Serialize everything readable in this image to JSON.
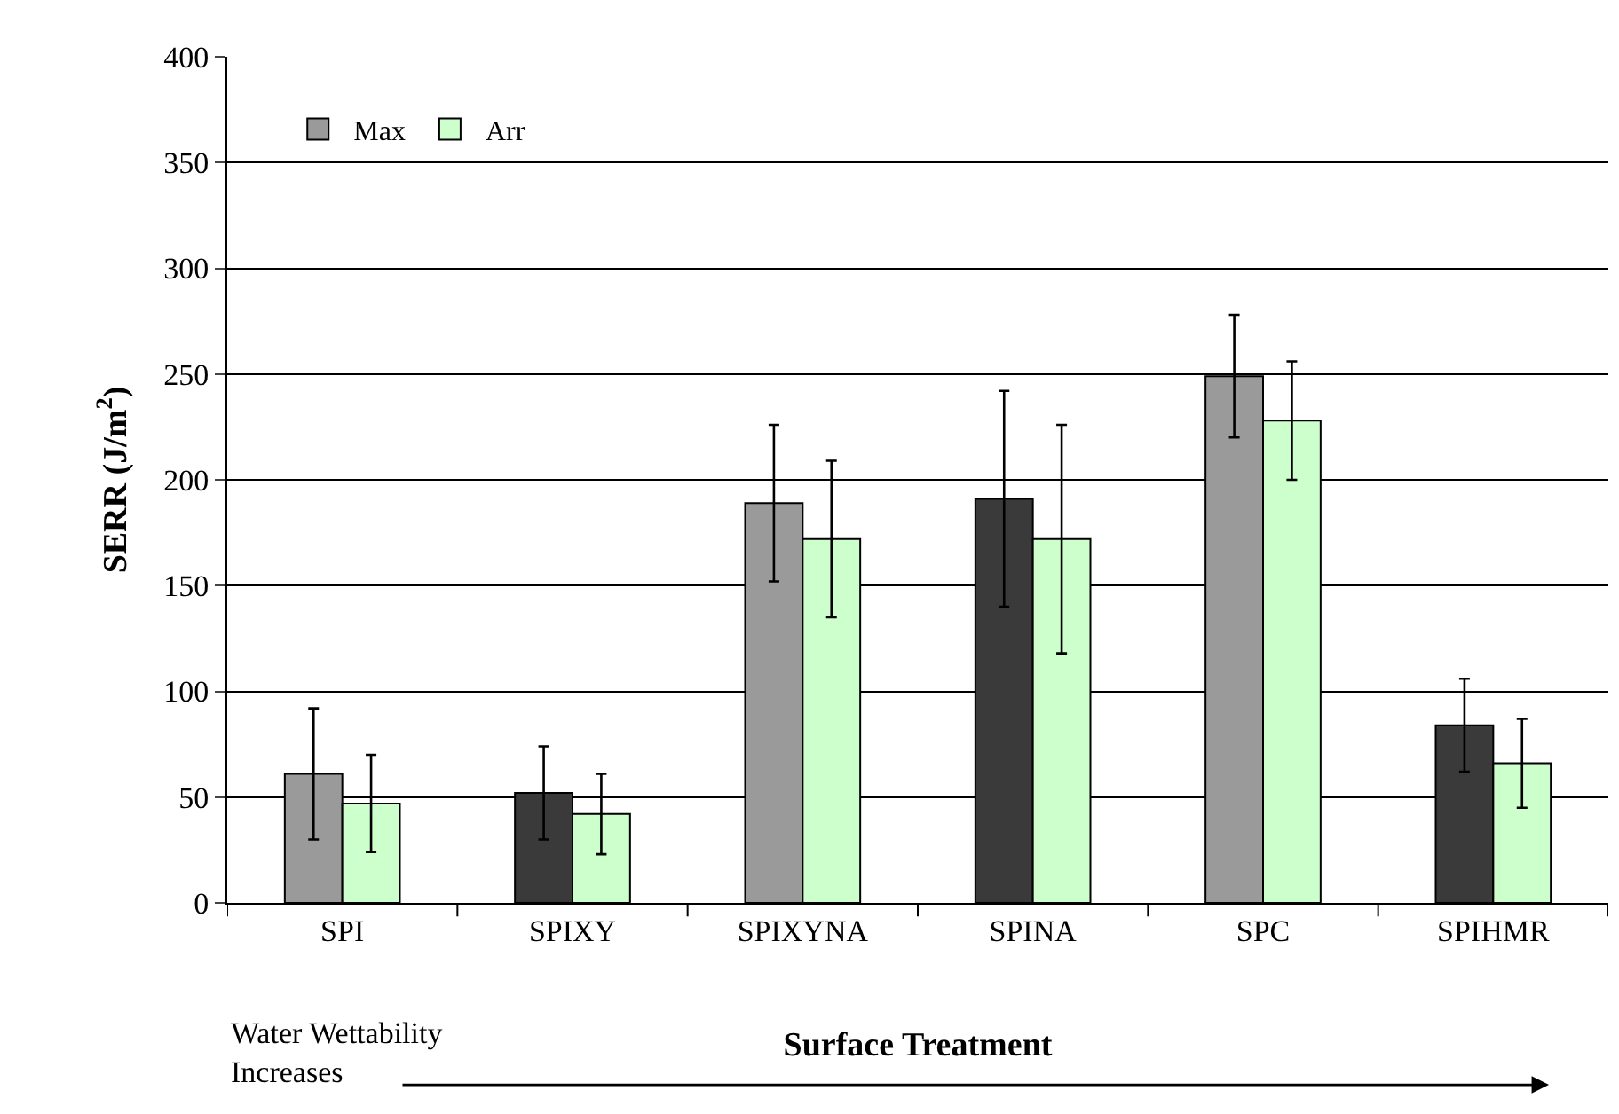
{
  "chart_data": {
    "type": "bar",
    "xlabel": "Surface Treatment",
    "ylabel": "SERR (J/m$^{2}$)",
    "categories": [
      "SPI",
      "SPIXY",
      "SPIXYNA",
      "SPINA",
      "SPC",
      "SPIHMR"
    ],
    "series": [
      {
        "name": "Max",
        "colors": [
          "#9a9a9a",
          "#3a3a3a",
          "#9a9a9a",
          "#3a3a3a",
          "#9a9a9a",
          "#3a3a3a"
        ],
        "values": [
          61,
          52,
          189,
          191,
          249,
          84
        ],
        "errors": [
          31,
          22,
          37,
          51,
          29,
          22
        ]
      },
      {
        "name": "Arr",
        "color": "#ccffcc",
        "values": [
          47,
          42,
          172,
          172,
          228,
          66
        ],
        "errors": [
          23,
          19,
          37,
          54,
          28,
          21
        ]
      }
    ],
    "annotations": [
      "Water Wettability\nIncreases"
    ],
    "ylim": [
      0,
      400
    ],
    "yticks": [
      0,
      50,
      100,
      150,
      200,
      250,
      300,
      350,
      400
    ],
    "grid": "y",
    "legend": "top left"
  }
}
